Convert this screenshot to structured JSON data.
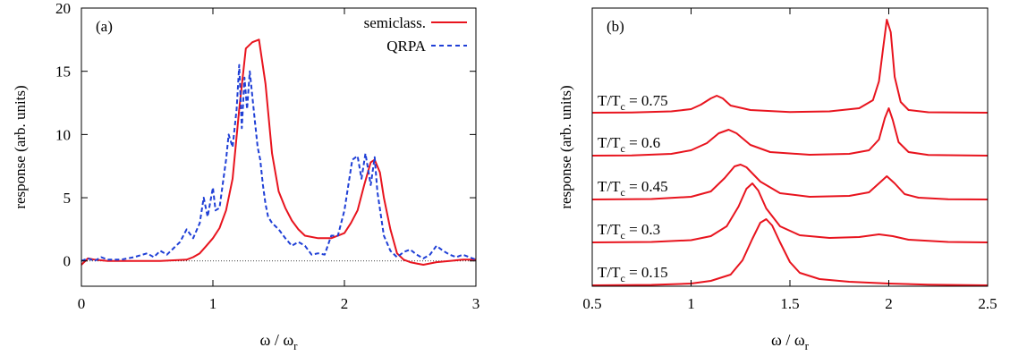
{
  "colors": {
    "semiclass": "#e8141e",
    "qrpa": "#1f3fd6",
    "axis": "#000000"
  },
  "chart_data": [
    {
      "type": "line",
      "panel_label": "(a)",
      "xlabel_main": "ω / ω",
      "xlabel_sub": "r",
      "ylabel": "response   (arb. units)",
      "xlim": [
        0,
        3
      ],
      "ylim": [
        -2,
        20
      ],
      "xticks": [
        0,
        1,
        2,
        3
      ],
      "yticks": [
        0,
        5,
        10,
        15,
        20
      ],
      "xtick_labels": [
        "0",
        "1",
        "2",
        "3"
      ],
      "ytick_labels": [
        "0",
        "5",
        "10",
        "15",
        "20"
      ],
      "legend": {
        "placement": "top-right",
        "entries": [
          "semiclass.",
          "QRPA"
        ]
      },
      "series": [
        {
          "name": "semiclass.",
          "style": "solid",
          "x": [
            0,
            0.05,
            0.1,
            0.2,
            0.3,
            0.4,
            0.5,
            0.6,
            0.7,
            0.8,
            0.85,
            0.9,
            0.95,
            1.0,
            1.05,
            1.1,
            1.15,
            1.2,
            1.25,
            1.3,
            1.35,
            1.4,
            1.45,
            1.5,
            1.55,
            1.6,
            1.65,
            1.7,
            1.8,
            1.9,
            2.0,
            2.05,
            2.1,
            2.15,
            2.2,
            2.23,
            2.27,
            2.3,
            2.35,
            2.4,
            2.45,
            2.5,
            2.55,
            2.6,
            2.7,
            2.8,
            2.9,
            3.0
          ],
          "y": [
            -0.3,
            0.2,
            0.1,
            0.0,
            0.0,
            0.0,
            0.0,
            0.0,
            0.05,
            0.1,
            0.3,
            0.6,
            1.2,
            1.8,
            2.6,
            4.0,
            6.5,
            12.0,
            16.8,
            17.3,
            17.5,
            14.0,
            8.5,
            5.5,
            4.2,
            3.2,
            2.5,
            2.0,
            1.8,
            1.8,
            2.2,
            3.0,
            4.0,
            6.0,
            7.8,
            8.0,
            7.0,
            5.0,
            2.5,
            0.6,
            0.1,
            -0.1,
            -0.2,
            -0.3,
            -0.1,
            0.0,
            0.1,
            0.1
          ]
        },
        {
          "name": "QRPA",
          "style": "dashed",
          "x": [
            0,
            0.05,
            0.1,
            0.15,
            0.2,
            0.3,
            0.4,
            0.5,
            0.55,
            0.6,
            0.65,
            0.7,
            0.75,
            0.8,
            0.85,
            0.9,
            0.93,
            0.96,
            1.0,
            1.02,
            1.05,
            1.08,
            1.1,
            1.12,
            1.15,
            1.18,
            1.2,
            1.22,
            1.24,
            1.26,
            1.28,
            1.3,
            1.32,
            1.34,
            1.36,
            1.38,
            1.4,
            1.42,
            1.45,
            1.5,
            1.55,
            1.6,
            1.65,
            1.7,
            1.75,
            1.8,
            1.85,
            1.9,
            1.95,
            2.0,
            2.03,
            2.06,
            2.1,
            2.13,
            2.16,
            2.2,
            2.23,
            2.25,
            2.3,
            2.35,
            2.4,
            2.45,
            2.5,
            2.55,
            2.6,
            2.65,
            2.7,
            2.75,
            2.8,
            2.85,
            2.9,
            3.0
          ],
          "y": [
            0.0,
            0.2,
            0.0,
            0.3,
            0.1,
            0.1,
            0.3,
            0.6,
            0.3,
            0.8,
            0.5,
            1.0,
            1.5,
            2.5,
            1.8,
            3.0,
            5.0,
            3.5,
            5.8,
            4.0,
            4.2,
            6.5,
            8.0,
            10.0,
            9.0,
            12.0,
            15.5,
            10.5,
            14.5,
            12.0,
            15.0,
            13.0,
            11.0,
            9.0,
            8.0,
            6.0,
            4.5,
            3.5,
            3.0,
            2.5,
            1.8,
            1.2,
            1.5,
            1.2,
            0.5,
            0.6,
            0.5,
            2.0,
            2.0,
            4.0,
            6.0,
            8.0,
            8.3,
            6.5,
            8.5,
            6.0,
            8.2,
            5.5,
            2.0,
            0.8,
            0.3,
            0.7,
            0.9,
            0.5,
            0.2,
            0.5,
            1.2,
            0.8,
            0.5,
            0.3,
            0.5,
            0.1
          ]
        }
      ]
    },
    {
      "type": "line",
      "panel_label": "(b)",
      "xlabel_main": "ω / ω",
      "xlabel_sub": "r",
      "ylabel": "response   (arb. units)",
      "xlim": [
        0.5,
        2.5
      ],
      "xticks": [
        0.5,
        1,
        1.5,
        2,
        2.5
      ],
      "xtick_labels": [
        "0.5",
        "1",
        "1.5",
        "2",
        "2.5"
      ],
      "series": [
        {
          "name": "T/T_c = 0.75",
          "label_main": "T/T",
          "label_sub": "c",
          "label_value": " = 0.75",
          "x": [
            0.5,
            0.7,
            0.9,
            1.0,
            1.05,
            1.1,
            1.13,
            1.16,
            1.2,
            1.3,
            1.5,
            1.7,
            1.85,
            1.92,
            1.95,
            1.97,
            1.99,
            2.01,
            2.03,
            2.06,
            2.1,
            2.2,
            2.5
          ],
          "y": [
            0,
            0.3,
            1.5,
            4.0,
            9.0,
            16.0,
            19.0,
            16.0,
            8.0,
            3.0,
            0.8,
            1.5,
            5.0,
            14.0,
            35.0,
            70.0,
            104.0,
            90.0,
            40.0,
            12.0,
            3.0,
            0.5,
            0
          ]
        },
        {
          "name": "T/T_c = 0.6",
          "label_main": "T/T",
          "label_sub": "c",
          "label_value": " = 0.6",
          "x": [
            0.5,
            0.7,
            0.9,
            1.0,
            1.08,
            1.14,
            1.19,
            1.23,
            1.3,
            1.4,
            1.6,
            1.8,
            1.9,
            1.95,
            1.98,
            2.0,
            2.02,
            2.05,
            2.1,
            2.2,
            2.5
          ],
          "y": [
            0,
            0.3,
            2.0,
            6.0,
            14.0,
            25.0,
            29.0,
            25.0,
            12.0,
            4.0,
            1.0,
            2.0,
            6.0,
            18.0,
            42.0,
            53.0,
            40.0,
            15.0,
            4.0,
            0.8,
            0
          ]
        },
        {
          "name": "T/T_c = 0.45",
          "label_main": "T/T",
          "label_sub": "c",
          "label_value": " = 0.45",
          "x": [
            0.5,
            0.8,
            1.0,
            1.1,
            1.17,
            1.22,
            1.25,
            1.28,
            1.35,
            1.45,
            1.6,
            1.8,
            1.9,
            1.95,
            1.99,
            2.03,
            2.08,
            2.15,
            2.3,
            2.5
          ],
          "y": [
            0,
            0.5,
            3.0,
            9.0,
            24.0,
            37.0,
            39.0,
            36.0,
            20.0,
            7.0,
            3.0,
            4.0,
            8.0,
            18.0,
            26.0,
            18.0,
            6.0,
            2.0,
            0.3,
            0
          ]
        },
        {
          "name": "T/T_c = 0.3",
          "label_main": "T/T",
          "label_sub": "c",
          "label_value": " = 0.3",
          "x": [
            0.5,
            0.8,
            1.0,
            1.1,
            1.18,
            1.24,
            1.28,
            1.31,
            1.34,
            1.38,
            1.45,
            1.55,
            1.7,
            1.85,
            1.95,
            2.02,
            2.1,
            2.3,
            2.5
          ],
          "y": [
            0,
            0.5,
            2.5,
            7.0,
            18.0,
            40.0,
            60.0,
            66.0,
            58.0,
            38.0,
            18.0,
            8.0,
            5.0,
            6.0,
            9.0,
            7.0,
            3.0,
            0.5,
            0
          ]
        },
        {
          "name": "T/T_c = 0.15",
          "label_main": "T/T",
          "label_sub": "c",
          "label_value": " = 0.15",
          "x": [
            0.5,
            0.8,
            1.0,
            1.1,
            1.2,
            1.26,
            1.31,
            1.35,
            1.38,
            1.41,
            1.45,
            1.5,
            1.55,
            1.65,
            1.8,
            2.0,
            2.2,
            2.5
          ],
          "y": [
            0,
            0.5,
            2.0,
            5.0,
            12.0,
            28.0,
            52.0,
            70.0,
            74.0,
            67.0,
            48.0,
            26.0,
            14.0,
            7.0,
            4.0,
            2.0,
            0.8,
            0
          ]
        }
      ]
    }
  ]
}
